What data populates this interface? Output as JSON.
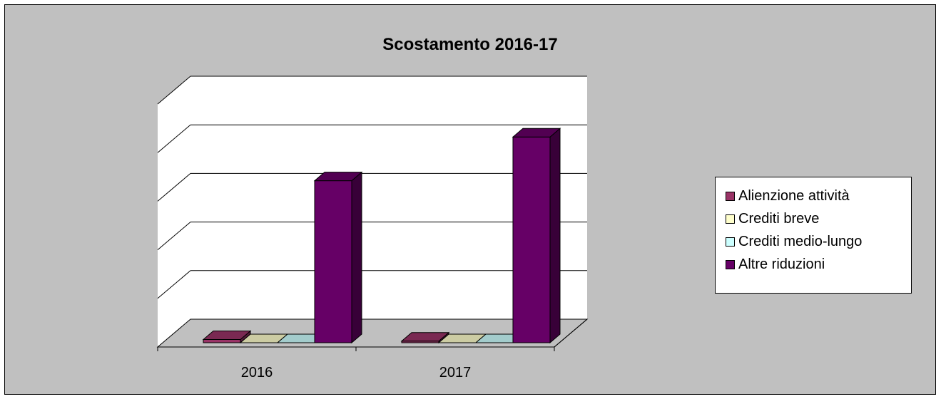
{
  "chart_data": {
    "type": "bar",
    "title": "Scostamento 2016-17",
    "categories": [
      "2016",
      "2017"
    ],
    "series": [
      {
        "name": "Alienzione attività",
        "color": "#993366",
        "values": [
          2,
          1
        ]
      },
      {
        "name": "Crediti breve",
        "color": "#ffffcc",
        "values": [
          0,
          0
        ]
      },
      {
        "name": "Crediti medio-lungo",
        "color": "#ccffff",
        "values": [
          0,
          0
        ]
      },
      {
        "name": "Altre riduzioni",
        "color": "#660066",
        "values": [
          100,
          127
        ]
      }
    ],
    "ylim": [
      0,
      150
    ],
    "grid": true,
    "legend_position": "right"
  }
}
